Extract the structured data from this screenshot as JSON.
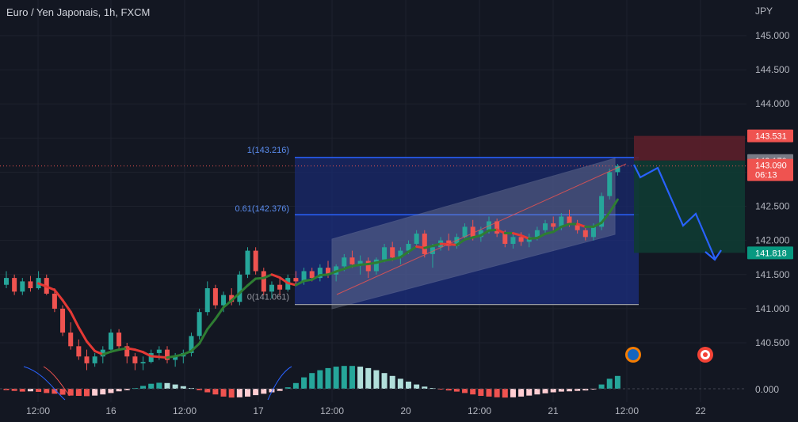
{
  "header": {
    "title": "Euro / Yen Japonais, 1h, FXCM",
    "currency": "JPY"
  },
  "colors": {
    "background": "#131722",
    "up": "#26a69a",
    "down": "#ef5350",
    "fib_line": "#2962ff",
    "fib_zone": "#1e3a8a",
    "stop_zone": "#5c1f2a",
    "target_zone": "#0f3b33",
    "projection": "#2962ff",
    "ma_up": "#2e7d32",
    "ma_down": "#e53935"
  },
  "chart_data": {
    "type": "candlestick",
    "title": "Euro / Yen Japonais, 1h, FXCM",
    "y_ticks": [
      "145.000",
      "144.500",
      "144.000",
      "143.500",
      "143.000",
      "142.500",
      "142.000",
      "141.500",
      "141.000",
      "140.500"
    ],
    "y_tick_values": [
      145.0,
      144.5,
      144.0,
      143.5,
      143.0,
      142.5,
      142.0,
      141.5,
      141.0,
      140.5
    ],
    "ylim": [
      140.15,
      145.35
    ],
    "x_ticks": [
      "12:00",
      "16",
      "12:00",
      "17",
      "12:00",
      "20",
      "12:00",
      "21",
      "12:00",
      "22"
    ],
    "price_labels": [
      {
        "text": "143.531",
        "value": 143.531,
        "color": "#ef5350"
      },
      {
        "text": "143.170",
        "value": 143.17,
        "color": "#787b86"
      },
      {
        "text": "143.090",
        "sub": "06:13",
        "value": 143.09,
        "color": "#ef5350"
      },
      {
        "text": "141.818",
        "value": 141.818,
        "color": "#089981"
      }
    ],
    "fibonacci": [
      {
        "label": "1(143.216)",
        "value": 143.216
      },
      {
        "label": "0.61(142.376)",
        "value": 142.376
      },
      {
        "label": "0(141.061)",
        "value": 141.061
      }
    ],
    "oscillator_zero_label": "0.000",
    "candles": [
      [
        141.35,
        141.55,
        141.3,
        141.45
      ],
      [
        141.45,
        141.5,
        141.2,
        141.25
      ],
      [
        141.25,
        141.45,
        141.2,
        141.4
      ],
      [
        141.4,
        141.48,
        141.25,
        141.3
      ],
      [
        141.3,
        141.55,
        141.28,
        141.45
      ],
      [
        141.45,
        141.5,
        141.2,
        141.22
      ],
      [
        141.22,
        141.3,
        140.95,
        141.0
      ],
      [
        141.0,
        141.05,
        140.6,
        140.65
      ],
      [
        140.65,
        140.8,
        140.4,
        140.45
      ],
      [
        140.45,
        140.55,
        140.25,
        140.3
      ],
      [
        140.3,
        140.4,
        140.1,
        140.2
      ],
      [
        140.2,
        140.35,
        140.15,
        140.3
      ],
      [
        140.3,
        140.45,
        140.2,
        140.4
      ],
      [
        140.4,
        140.7,
        140.35,
        140.65
      ],
      [
        140.65,
        140.7,
        140.4,
        140.45
      ],
      [
        140.45,
        140.5,
        140.2,
        140.3
      ],
      [
        140.3,
        140.35,
        140.1,
        140.2
      ],
      [
        140.2,
        140.3,
        140.1,
        140.22
      ],
      [
        140.22,
        140.4,
        140.2,
        140.35
      ],
      [
        140.35,
        140.45,
        140.25,
        140.4
      ],
      [
        140.4,
        140.45,
        140.2,
        140.25
      ],
      [
        140.25,
        140.35,
        140.15,
        140.3
      ],
      [
        140.3,
        140.4,
        140.2,
        140.35
      ],
      [
        140.35,
        140.65,
        140.3,
        140.6
      ],
      [
        140.6,
        141.0,
        140.55,
        140.95
      ],
      [
        140.95,
        141.4,
        140.9,
        141.3
      ],
      [
        141.3,
        141.35,
        141.0,
        141.05
      ],
      [
        141.05,
        141.25,
        140.95,
        141.2
      ],
      [
        141.2,
        141.3,
        141.05,
        141.1
      ],
      [
        141.1,
        141.55,
        141.05,
        141.5
      ],
      [
        141.5,
        141.9,
        141.45,
        141.85
      ],
      [
        141.85,
        141.9,
        141.5,
        141.55
      ],
      [
        141.55,
        141.6,
        141.2,
        141.25
      ],
      [
        141.25,
        141.4,
        141.15,
        141.35
      ],
      [
        141.35,
        141.45,
        141.2,
        141.28
      ],
      [
        141.28,
        141.5,
        141.25,
        141.45
      ],
      [
        141.45,
        141.55,
        141.35,
        141.4
      ],
      [
        141.4,
        141.6,
        141.35,
        141.55
      ],
      [
        141.55,
        141.6,
        141.4,
        141.45
      ],
      [
        141.45,
        141.65,
        141.4,
        141.6
      ],
      [
        141.6,
        141.7,
        141.45,
        141.5
      ],
      [
        141.5,
        141.65,
        141.4,
        141.62
      ],
      [
        141.62,
        141.8,
        141.55,
        141.75
      ],
      [
        141.75,
        141.85,
        141.6,
        141.65
      ],
      [
        141.65,
        141.78,
        141.5,
        141.7
      ],
      [
        141.7,
        141.75,
        141.45,
        141.55
      ],
      [
        141.55,
        141.75,
        141.5,
        141.72
      ],
      [
        141.72,
        141.95,
        141.68,
        141.9
      ],
      [
        141.9,
        141.98,
        141.7,
        141.75
      ],
      [
        141.75,
        141.9,
        141.65,
        141.85
      ],
      [
        141.85,
        142.0,
        141.8,
        141.95
      ],
      [
        141.95,
        142.15,
        141.9,
        142.1
      ],
      [
        142.1,
        142.15,
        141.75,
        141.8
      ],
      [
        141.8,
        141.95,
        141.6,
        141.9
      ],
      [
        141.9,
        142.05,
        141.85,
        142.0
      ],
      [
        142.0,
        142.1,
        141.85,
        141.92
      ],
      [
        141.92,
        142.1,
        141.88,
        142.05
      ],
      [
        142.05,
        142.25,
        142.0,
        142.2
      ],
      [
        142.2,
        142.3,
        142.0,
        142.05
      ],
      [
        142.05,
        142.2,
        141.98,
        142.15
      ],
      [
        142.15,
        142.35,
        142.1,
        142.28
      ],
      [
        142.28,
        142.32,
        142.05,
        142.1
      ],
      [
        142.1,
        142.15,
        141.9,
        141.95
      ],
      [
        141.95,
        142.1,
        141.88,
        142.05
      ],
      [
        142.05,
        142.12,
        141.92,
        141.98
      ],
      [
        141.98,
        142.1,
        141.9,
        142.05
      ],
      [
        142.05,
        142.2,
        142.0,
        142.15
      ],
      [
        142.15,
        142.3,
        142.1,
        142.25
      ],
      [
        142.25,
        142.35,
        142.15,
        142.2
      ],
      [
        142.2,
        142.4,
        142.15,
        142.35
      ],
      [
        142.35,
        142.45,
        142.2,
        142.25
      ],
      [
        142.25,
        142.3,
        142.1,
        142.15
      ],
      [
        142.15,
        142.2,
        142.0,
        142.05
      ],
      [
        142.05,
        142.25,
        142.0,
        142.2
      ],
      [
        142.2,
        142.7,
        142.15,
        142.65
      ],
      [
        142.65,
        143.05,
        142.6,
        143.0
      ],
      [
        143.0,
        143.12,
        142.95,
        143.09
      ]
    ],
    "oscillator": [
      -0.1,
      -0.15,
      -0.2,
      -0.18,
      -0.22,
      -0.3,
      -0.35,
      -0.42,
      -0.48,
      -0.5,
      -0.52,
      -0.48,
      -0.4,
      -0.3,
      -0.18,
      -0.1,
      0.05,
      0.2,
      0.35,
      0.42,
      0.4,
      0.3,
      0.18,
      0.05,
      -0.1,
      -0.25,
      -0.4,
      -0.55,
      -0.62,
      -0.6,
      -0.55,
      -0.45,
      -0.35,
      -0.25,
      -0.15,
      0.1,
      0.4,
      0.8,
      1.1,
      1.3,
      1.45,
      1.55,
      1.6,
      1.6,
      1.55,
      1.45,
      1.3,
      1.1,
      0.9,
      0.7,
      0.5,
      0.3,
      0.15,
      0.05,
      -0.05,
      -0.12,
      -0.2,
      -0.3,
      -0.4,
      -0.5,
      -0.55,
      -0.6,
      -0.62,
      -0.6,
      -0.55,
      -0.48,
      -0.4,
      -0.32,
      -0.25,
      -0.2,
      -0.18,
      -0.15,
      -0.12,
      -0.05,
      0.3,
      0.7,
      0.9
    ]
  }
}
